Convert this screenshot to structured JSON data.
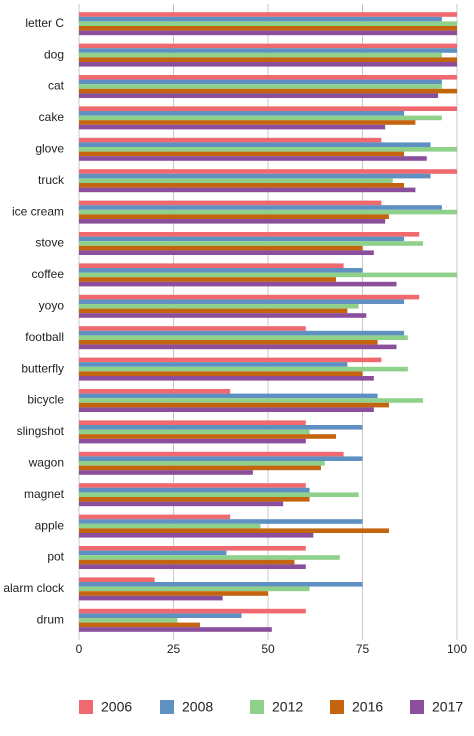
{
  "chart_data": {
    "type": "bar",
    "orientation": "horizontal",
    "categories": [
      "letter C",
      "dog",
      "cat",
      "cake",
      "glove",
      "truck",
      "ice cream",
      "stove",
      "coffee",
      "yoyo",
      "football",
      "butterfly",
      "bicycle",
      "slingshot",
      "wagon",
      "magnet",
      "apple",
      "pot",
      "alarm clock",
      "drum"
    ],
    "series": [
      {
        "name": "2006",
        "color": "#f0696f",
        "values": [
          100,
          100,
          100,
          100,
          80,
          100,
          80,
          90,
          70,
          90,
          60,
          80,
          40,
          60,
          70,
          60,
          40,
          60,
          20,
          60
        ]
      },
      {
        "name": "2008",
        "color": "#5e91c2",
        "values": [
          96,
          100,
          96,
          86,
          93,
          93,
          96,
          86,
          75,
          86,
          86,
          71,
          79,
          75,
          75,
          61,
          75,
          39,
          75,
          43
        ]
      },
      {
        "name": "2012",
        "color": "#8fd18b",
        "values": [
          100,
          96,
          96,
          96,
          100,
          83,
          100,
          91,
          100,
          74,
          87,
          87,
          91,
          61,
          65,
          74,
          48,
          69,
          61,
          26
        ]
      },
      {
        "name": "2016",
        "color": "#c4640e",
        "values": [
          100,
          100,
          100,
          89,
          86,
          86,
          82,
          75,
          68,
          71,
          79,
          75,
          82,
          68,
          64,
          61,
          82,
          57,
          50,
          32
        ]
      },
      {
        "name": "2017",
        "color": "#8a4e9c",
        "values": [
          100,
          100,
          95,
          81,
          92,
          89,
          81,
          78,
          84,
          76,
          84,
          78,
          78,
          60,
          46,
          54,
          62,
          60,
          38,
          51
        ]
      }
    ],
    "xlim": [
      0,
      100
    ],
    "xticks": [
      0,
      25,
      50,
      75,
      100
    ],
    "grid": true,
    "legend": "bottom"
  }
}
